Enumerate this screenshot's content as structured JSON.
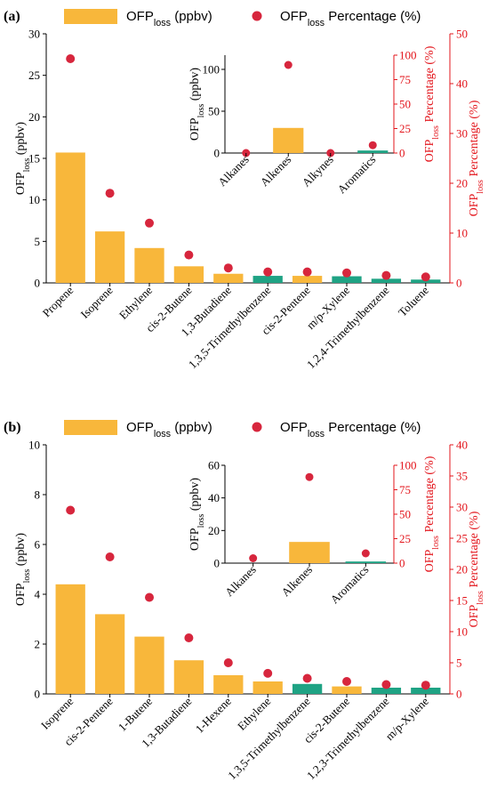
{
  "colors": {
    "alkene": "#F8B73B",
    "aromatic": "#1FA384",
    "marker": "#D7263D",
    "axis_right": "#E3141B"
  },
  "legend": {
    "bar_main": "OFP",
    "bar_sub": "loss",
    "bar_suffix": " (ppbv)",
    "dot_main": "OFP",
    "dot_sub": "loss",
    "dot_suffix": " Percentage (%)"
  },
  "chart_data": [
    {
      "panel": "(a)",
      "type": "bar",
      "ylabel_main": "OFP",
      "ylabel_sub": "loss",
      "ylabel_suffix": " (ppbv)",
      "y2label_main": "OFP",
      "y2label_sub": "loss",
      "y2label_suffix": " Percentage (%)",
      "ylim": [
        0,
        30
      ],
      "y_ticks": [
        0,
        5,
        10,
        15,
        20,
        25,
        30
      ],
      "y2lim": [
        0,
        50
      ],
      "y2_ticks": [
        0,
        10,
        20,
        30,
        40,
        50
      ],
      "categories": [
        "Propene",
        "Isoprene",
        "Ethylene",
        "cis-2-Butene",
        "1,3-Butadiene",
        "1,3,5-Trimethylbenzene",
        "cis-2-Pentene",
        "m/p-Xylene",
        "1,2,4-Trimethylbenzene",
        "Toluene"
      ],
      "groups": [
        "alkene",
        "alkene",
        "alkene",
        "alkene",
        "alkene",
        "aromatic",
        "alkene",
        "aromatic",
        "aromatic",
        "aromatic"
      ],
      "values": [
        15.7,
        6.2,
        4.2,
        2.0,
        1.1,
        0.85,
        0.85,
        0.8,
        0.5,
        0.4
      ],
      "percent": [
        45.0,
        18.0,
        12.0,
        5.6,
        3.0,
        2.2,
        2.2,
        2.0,
        1.5,
        1.2
      ],
      "inset": {
        "categories": [
          "Alkanes",
          "Alkenes",
          "Alkynes",
          "Aromatics"
        ],
        "groups": [
          "alkene",
          "alkene",
          "alkene",
          "aromatic"
        ],
        "values": [
          0,
          30,
          0,
          3
        ],
        "percent": [
          0,
          90,
          0,
          8
        ],
        "ylim": [
          0,
          117
        ],
        "y_ticks": [
          0,
          50,
          100
        ],
        "y2lim": [
          0,
          100
        ],
        "y2_ticks": [
          0,
          25,
          50,
          75,
          100
        ],
        "ylabel_main": "OFP",
        "ylabel_sub": "loss",
        "ylabel_suffix": " (ppbv)",
        "y2label_main": "OFP",
        "y2label_sub": "loss",
        "y2label_suffix": " Percentage (%)"
      }
    },
    {
      "panel": "(b)",
      "type": "bar",
      "ylabel_main": "OFP",
      "ylabel_sub": "loss",
      "ylabel_suffix": " (ppbv)",
      "y2label_main": "OFP",
      "y2label_sub": "loss",
      "y2label_suffix": " Percentage (%)",
      "ylim": [
        0,
        10
      ],
      "y_ticks": [
        0,
        2,
        4,
        6,
        8,
        10
      ],
      "y2lim": [
        0,
        40
      ],
      "y2_ticks": [
        0,
        5,
        10,
        15,
        20,
        25,
        30,
        35,
        40
      ],
      "categories": [
        "Isoprene",
        "cis-2-Pentene",
        "1-Butene",
        "1,3-Butadiene",
        "1-Hexene",
        "Ethylene",
        "1,3,5-Trimethylbenzene",
        "cis-2-Butene",
        "1,2,3-Trimethylbenzene",
        "m/p-Xylene"
      ],
      "groups": [
        "alkene",
        "alkene",
        "alkene",
        "alkene",
        "alkene",
        "alkene",
        "aromatic",
        "alkene",
        "aromatic",
        "aromatic"
      ],
      "values": [
        4.4,
        3.2,
        2.3,
        1.35,
        0.75,
        0.5,
        0.4,
        0.3,
        0.25,
        0.25
      ],
      "percent": [
        29.5,
        22.0,
        15.5,
        9.0,
        5.0,
        3.3,
        2.5,
        2.0,
        1.5,
        1.4
      ],
      "inset": {
        "categories": [
          "Alkanes",
          "Alkenes",
          "Aromatics"
        ],
        "groups": [
          "alkene",
          "alkene",
          "aromatic"
        ],
        "values": [
          0,
          13,
          1
        ],
        "percent": [
          5,
          88,
          10
        ],
        "ylim": [
          0,
          60
        ],
        "y_ticks": [
          0,
          20,
          40,
          60
        ],
        "y2lim": [
          0,
          100
        ],
        "y2_ticks": [
          0,
          25,
          50,
          75,
          100
        ],
        "ylabel_main": "OFP",
        "ylabel_sub": "loss",
        "ylabel_suffix": " (ppbv)",
        "y2label_main": "OFP",
        "y2label_sub": "loss",
        "y2label_suffix": " Percentage (%)"
      }
    }
  ]
}
